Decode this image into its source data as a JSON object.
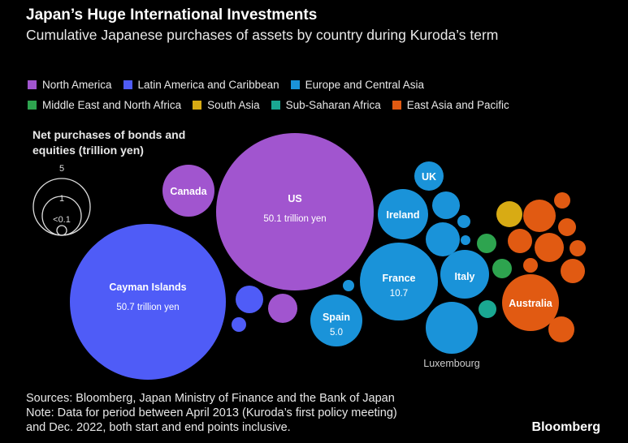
{
  "chart_data": {
    "type": "bubble",
    "title": "Japan’s Huge International Investments",
    "subtitle": "Cumulative Japanese purchases of assets by country during Kuroda’s term",
    "size_legend": {
      "title": "Net purchases of bonds and equities (trillion yen)",
      "values": [
        {
          "label": "5",
          "value": 5
        },
        {
          "label": "1",
          "value": 1
        },
        {
          "label": "<0.1",
          "value": 0.1
        }
      ]
    },
    "regions": [
      {
        "key": "north_america",
        "name": "North America",
        "color": "#a155cf"
      },
      {
        "key": "latin_america",
        "name": "Latin America and Caribbean",
        "color": "#4f5cf7"
      },
      {
        "key": "europe",
        "name": "Europe and Central Asia",
        "color": "#1a93d9"
      },
      {
        "key": "mena",
        "name": "Middle East and North Africa",
        "color": "#2ea44f"
      },
      {
        "key": "south_asia",
        "name": "South Asia",
        "color": "#d8ab14"
      },
      {
        "key": "ssa",
        "name": "Sub-Saharan Africa",
        "color": "#1aa892"
      },
      {
        "key": "east_asia",
        "name": "East Asia and Pacific",
        "color": "#e15a12"
      }
    ],
    "bubbles": [
      {
        "name": "Cayman Islands",
        "region": "latin_america",
        "value": 50.7,
        "label": "Cayman Islands",
        "value_label": "50.7 trillion yen"
      },
      {
        "name": "US",
        "region": "north_america",
        "value": 50.1,
        "label": "US",
        "value_label": "50.1 trillion yen"
      },
      {
        "name": "Canada",
        "region": "north_america",
        "value": 6.5,
        "label": "Canada",
        "value_label": ""
      },
      {
        "name": "France",
        "region": "europe",
        "value": 10.7,
        "label": "France",
        "value_label": "10.7"
      },
      {
        "name": "Spain",
        "region": "europe",
        "value": 5.0,
        "label": "Spain",
        "value_label": "5.0"
      },
      {
        "name": "Ireland",
        "region": "europe",
        "value": 5.4,
        "label": "Ireland",
        "value_label": ""
      },
      {
        "name": "Italy",
        "region": "europe",
        "value": 5.0,
        "label": "Italy",
        "value_label": ""
      },
      {
        "name": "Luxembourg",
        "region": "europe",
        "value": 5.7,
        "label": "Luxembourg",
        "value_label": ""
      },
      {
        "name": "UK",
        "region": "europe",
        "value": 2.0,
        "label": "UK",
        "value_label": ""
      },
      {
        "name": "Australia",
        "region": "east_asia",
        "value": 6.0,
        "label": "Australia",
        "value_label": ""
      }
    ]
  },
  "footer": {
    "sources": "Sources: Bloomberg, Japan Ministry of Finance and the Bank of Japan",
    "note_line1": "Note: Data for period between April 2013 (Kuroda’s first policy meeting)",
    "note_line2": "and Dec. 2022, both start and end points inclusive."
  },
  "brand": "Bloomberg"
}
